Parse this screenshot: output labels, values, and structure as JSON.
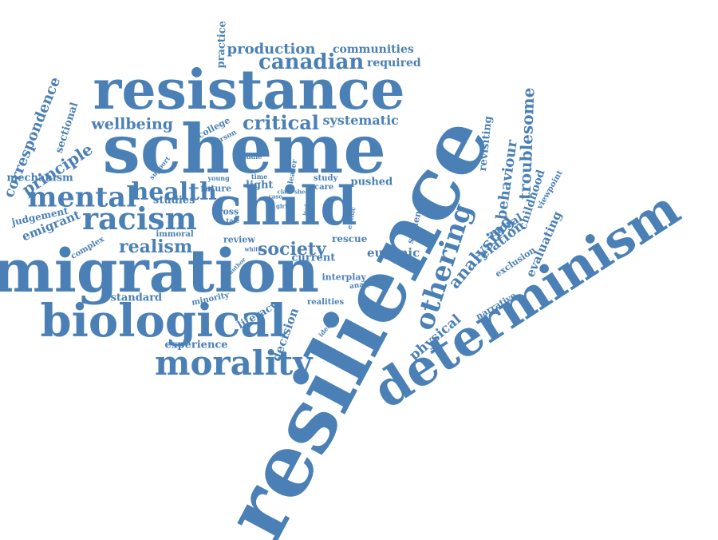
{
  "cloud": {
    "color": "#4a80b5",
    "words": [
      {
        "text": "resilience"
      },
      {
        "text": "determinism"
      },
      {
        "text": "scheme"
      },
      {
        "text": "resistance"
      },
      {
        "text": "migration"
      },
      {
        "text": "child"
      },
      {
        "text": "biological"
      },
      {
        "text": "morality"
      },
      {
        "text": "racism"
      },
      {
        "text": "mental"
      },
      {
        "text": "health"
      },
      {
        "text": "othering"
      },
      {
        "text": "society"
      },
      {
        "text": "realism"
      },
      {
        "text": "critical"
      },
      {
        "text": "canadian"
      },
      {
        "text": "wellbeing"
      },
      {
        "text": "principle"
      },
      {
        "text": "correspondence"
      },
      {
        "text": "emigrant"
      },
      {
        "text": "judgement"
      },
      {
        "text": "sectional"
      },
      {
        "text": "production"
      },
      {
        "text": "communities"
      },
      {
        "text": "required"
      },
      {
        "text": "practice"
      },
      {
        "text": "systematic"
      },
      {
        "text": "troublesome"
      },
      {
        "text": "behaviour"
      },
      {
        "text": "revisiting"
      },
      {
        "text": "childhood"
      },
      {
        "text": "analysing"
      },
      {
        "text": "relation"
      },
      {
        "text": "moral"
      },
      {
        "text": "evaluating"
      },
      {
        "text": "viewpoint"
      },
      {
        "text": "exclusion"
      },
      {
        "text": "physical"
      },
      {
        "text": "narrative"
      },
      {
        "text": "decision"
      },
      {
        "text": "literacy"
      },
      {
        "text": "experience"
      },
      {
        "text": "standard"
      },
      {
        "text": "minority"
      },
      {
        "text": "interplay"
      },
      {
        "text": "analyse"
      },
      {
        "text": "realities"
      },
      {
        "text": "identity"
      },
      {
        "text": "current"
      },
      {
        "text": "eugenic"
      },
      {
        "text": "rescue"
      },
      {
        "text": "review"
      },
      {
        "text": "immoral"
      },
      {
        "text": "complex"
      },
      {
        "text": "studies"
      },
      {
        "text": "future"
      },
      {
        "text": "cross"
      },
      {
        "text": "tale"
      },
      {
        "text": "light"
      },
      {
        "text": "pushed"
      },
      {
        "text": "student"
      },
      {
        "text": "ethnic"
      },
      {
        "text": "care"
      },
      {
        "text": "study"
      },
      {
        "text": "leaver"
      },
      {
        "text": "time"
      },
      {
        "text": "young"
      },
      {
        "text": "middle"
      },
      {
        "text": "college"
      },
      {
        "text": "person"
      },
      {
        "text": "support"
      },
      {
        "text": "mechanism"
      },
      {
        "text": "class"
      },
      {
        "text": "shed"
      },
      {
        "text": "case"
      },
      {
        "text": "girl"
      },
      {
        "text": "white"
      },
      {
        "text": "author"
      },
      {
        "text": "lead"
      }
    ]
  }
}
